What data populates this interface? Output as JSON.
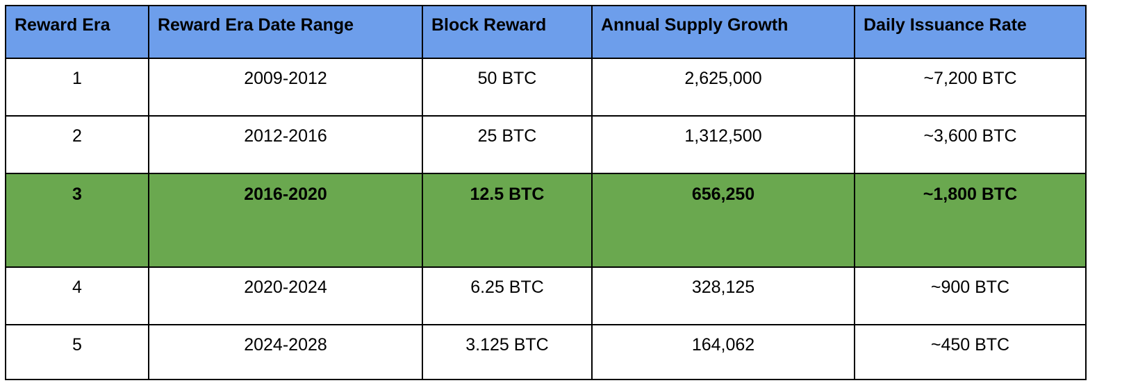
{
  "table": {
    "headers": [
      "Reward Era",
      "Reward Era Date Range",
      "Block Reward",
      "Annual Supply Growth",
      "Daily Issuance Rate"
    ],
    "rows": [
      [
        "1",
        "2009-2012",
        "50 BTC",
        "2,625,000",
        "~7,200 BTC"
      ],
      [
        "2",
        "2012-2016",
        "25 BTC",
        "1,312,500",
        "~3,600 BTC"
      ],
      [
        "3",
        "2016-2020",
        "12.5 BTC",
        "656,250",
        "~1,800 BTC"
      ],
      [
        "4",
        "2020-2024",
        "6.25 BTC",
        "328,125",
        "~900 BTC"
      ],
      [
        "5",
        "2024-2028",
        "3.125 BTC",
        "164,062",
        "~450 BTC"
      ]
    ],
    "highlighted_row": "3"
  },
  "colors": {
    "header_bg": "#6d9eeb",
    "highlight_bg": "#6aa84f",
    "border": "#000000"
  }
}
